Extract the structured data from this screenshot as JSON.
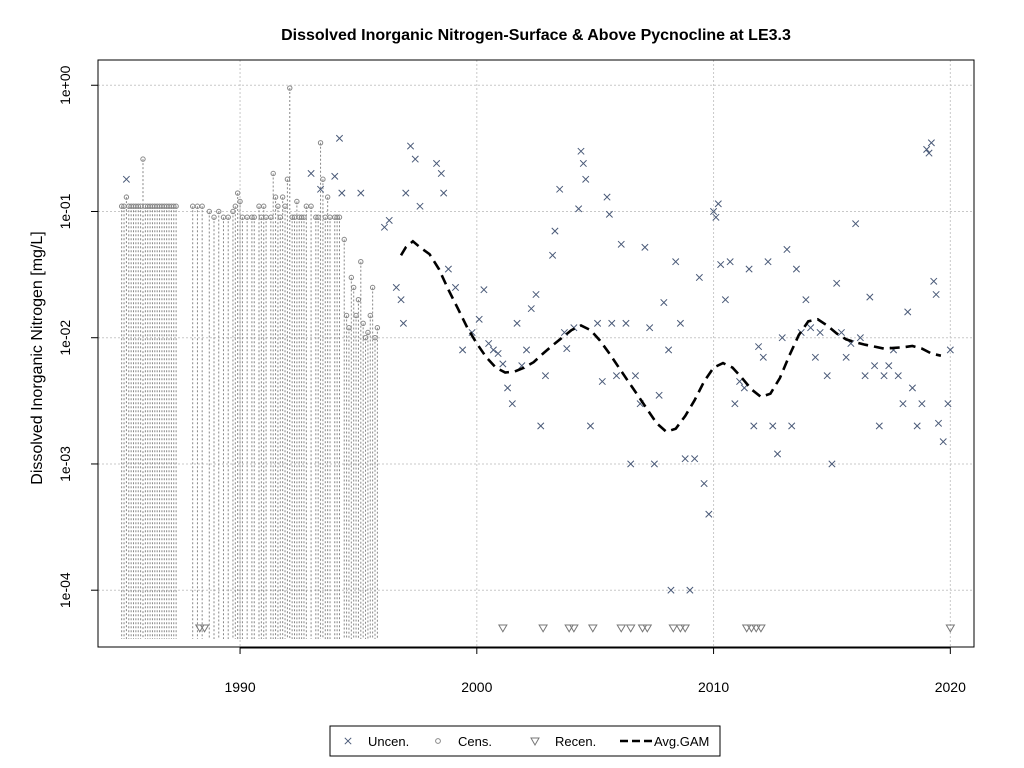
{
  "chart_data": {
    "type": "scatter",
    "title": "Dissolved Inorganic Nitrogen-Surface & Above Pycnocline at LE3.3",
    "xlabel": "",
    "ylabel": "Dissolved Inorganic Nitrogen [mg/L]",
    "xlim": [
      1984.0,
      2021.0
    ],
    "ylim_log10": [
      -4.45,
      0.2
    ],
    "y_scale": "log",
    "grid": true,
    "legend_position": "bottom-center",
    "x_ticks": [
      1990,
      2000,
      2010,
      2020
    ],
    "x_tick_labels": [
      "1990",
      "2000",
      "2010",
      "2020"
    ],
    "y_ticks": [
      0.0001,
      0.001,
      0.01,
      0.1,
      1
    ],
    "y_tick_labels": [
      "1e-04",
      "1e-03",
      "1e-02",
      "1e-01",
      "1e+00"
    ],
    "colors": {
      "uncen": "#4a5a78",
      "cens": "#888888",
      "recen": "#777777",
      "gam": "#000000"
    },
    "series": [
      {
        "name": "Uncen.",
        "marker": "x",
        "points": [
          [
            1985.2,
            0.18
          ],
          [
            1993.0,
            0.2
          ],
          [
            1993.4,
            0.15
          ],
          [
            1994.0,
            0.19
          ],
          [
            1994.2,
            0.38
          ],
          [
            1994.3,
            0.14
          ],
          [
            1995.1,
            0.14
          ],
          [
            1996.1,
            0.075
          ],
          [
            1996.3,
            0.085
          ],
          [
            1996.6,
            0.025
          ],
          [
            1996.8,
            0.02
          ],
          [
            1996.9,
            0.013
          ],
          [
            1997.0,
            0.14
          ],
          [
            1997.2,
            0.33
          ],
          [
            1997.4,
            0.26
          ],
          [
            1997.6,
            0.11
          ],
          [
            1998.3,
            0.24
          ],
          [
            1998.5,
            0.2
          ],
          [
            1998.6,
            0.14
          ],
          [
            1998.8,
            0.035
          ],
          [
            1999.1,
            0.025
          ],
          [
            1999.4,
            0.008
          ],
          [
            1999.8,
            0.011
          ],
          [
            2000.1,
            0.014
          ],
          [
            2000.3,
            0.024
          ],
          [
            2000.5,
            0.009
          ],
          [
            2000.7,
            0.008
          ],
          [
            2000.9,
            0.0075
          ],
          [
            2001.1,
            0.0062
          ],
          [
            2001.3,
            0.004
          ],
          [
            2001.5,
            0.003
          ],
          [
            2001.7,
            0.013
          ],
          [
            2001.9,
            0.006
          ],
          [
            2002.1,
            0.008
          ],
          [
            2002.3,
            0.017
          ],
          [
            2002.5,
            0.022
          ],
          [
            2002.7,
            0.002
          ],
          [
            2002.9,
            0.005
          ],
          [
            2003.2,
            0.045
          ],
          [
            2003.3,
            0.07
          ],
          [
            2003.5,
            0.15
          ],
          [
            2003.7,
            0.011
          ],
          [
            2003.8,
            0.0082
          ],
          [
            2004.1,
            0.012
          ],
          [
            2004.3,
            0.105
          ],
          [
            2004.4,
            0.3
          ],
          [
            2004.5,
            0.24
          ],
          [
            2004.6,
            0.18
          ],
          [
            2004.8,
            0.002
          ],
          [
            2005.1,
            0.013
          ],
          [
            2005.3,
            0.0045
          ],
          [
            2005.5,
            0.13
          ],
          [
            2005.6,
            0.095
          ],
          [
            2005.7,
            0.013
          ],
          [
            2005.9,
            0.005
          ],
          [
            2006.1,
            0.055
          ],
          [
            2006.3,
            0.013
          ],
          [
            2006.5,
            0.001
          ],
          [
            2006.7,
            0.005
          ],
          [
            2006.9,
            0.003
          ],
          [
            2007.1,
            0.052
          ],
          [
            2007.3,
            0.012
          ],
          [
            2007.5,
            0.001
          ],
          [
            2007.7,
            0.0035
          ],
          [
            2007.9,
            0.019
          ],
          [
            2008.1,
            0.008
          ],
          [
            2008.2,
            0.0001
          ],
          [
            2008.4,
            0.04
          ],
          [
            2008.6,
            0.013
          ],
          [
            2008.8,
            0.0011
          ],
          [
            2009.0,
            0.0001
          ],
          [
            2009.2,
            0.0011
          ],
          [
            2009.4,
            0.03
          ],
          [
            2009.6,
            0.0007
          ],
          [
            2009.8,
            0.0004
          ],
          [
            2010.0,
            0.1
          ],
          [
            2010.1,
            0.09
          ],
          [
            2010.2,
            0.115
          ],
          [
            2010.3,
            0.038
          ],
          [
            2010.5,
            0.02
          ],
          [
            2010.7,
            0.04
          ],
          [
            2010.9,
            0.003
          ],
          [
            2011.1,
            0.0045
          ],
          [
            2011.3,
            0.004
          ],
          [
            2011.5,
            0.035
          ],
          [
            2011.7,
            0.002
          ],
          [
            2011.9,
            0.0085
          ],
          [
            2012.1,
            0.007
          ],
          [
            2012.3,
            0.04
          ],
          [
            2012.5,
            0.002
          ],
          [
            2012.7,
            0.0012
          ],
          [
            2012.9,
            0.01
          ],
          [
            2013.1,
            0.05
          ],
          [
            2013.3,
            0.002
          ],
          [
            2013.5,
            0.035
          ],
          [
            2013.7,
            0.011
          ],
          [
            2013.9,
            0.02
          ],
          [
            2014.1,
            0.012
          ],
          [
            2014.3,
            0.007
          ],
          [
            2014.5,
            0.011
          ],
          [
            2014.8,
            0.005
          ],
          [
            2015.0,
            0.001
          ],
          [
            2015.2,
            0.027
          ],
          [
            2015.4,
            0.011
          ],
          [
            2015.6,
            0.007
          ],
          [
            2015.8,
            0.009
          ],
          [
            2016.0,
            0.08
          ],
          [
            2016.2,
            0.01
          ],
          [
            2016.4,
            0.005
          ],
          [
            2016.6,
            0.021
          ],
          [
            2016.8,
            0.006
          ],
          [
            2017.0,
            0.002
          ],
          [
            2017.2,
            0.005
          ],
          [
            2017.4,
            0.006
          ],
          [
            2017.6,
            0.008
          ],
          [
            2017.8,
            0.005
          ],
          [
            2018.0,
            0.003
          ],
          [
            2018.2,
            0.016
          ],
          [
            2018.4,
            0.004
          ],
          [
            2018.6,
            0.002
          ],
          [
            2018.8,
            0.003
          ],
          [
            2019.0,
            0.31
          ],
          [
            2019.1,
            0.29
          ],
          [
            2019.2,
            0.35
          ],
          [
            2019.3,
            0.028
          ],
          [
            2019.4,
            0.022
          ],
          [
            2019.5,
            0.0021
          ],
          [
            2019.7,
            0.0015
          ],
          [
            2019.9,
            0.003
          ],
          [
            2020.0,
            0.008
          ]
        ]
      },
      {
        "name": "Cens.",
        "marker": "circle",
        "points": [
          [
            1985.0,
            0.11
          ],
          [
            1985.1,
            0.11
          ],
          [
            1985.2,
            0.13
          ],
          [
            1985.3,
            0.11
          ],
          [
            1985.4,
            0.11
          ],
          [
            1985.5,
            0.11
          ],
          [
            1985.6,
            0.11
          ],
          [
            1985.7,
            0.11
          ],
          [
            1985.8,
            0.11
          ],
          [
            1985.9,
            0.26
          ],
          [
            1986.0,
            0.11
          ],
          [
            1986.1,
            0.11
          ],
          [
            1986.2,
            0.11
          ],
          [
            1986.3,
            0.11
          ],
          [
            1986.4,
            0.11
          ],
          [
            1986.5,
            0.11
          ],
          [
            1986.6,
            0.11
          ],
          [
            1986.7,
            0.11
          ],
          [
            1986.8,
            0.11
          ],
          [
            1986.9,
            0.11
          ],
          [
            1987.0,
            0.11
          ],
          [
            1987.1,
            0.11
          ],
          [
            1987.2,
            0.11
          ],
          [
            1987.3,
            0.11
          ],
          [
            1988.0,
            0.11
          ],
          [
            1988.2,
            0.11
          ],
          [
            1988.4,
            0.11
          ],
          [
            1988.7,
            0.1
          ],
          [
            1988.9,
            0.09
          ],
          [
            1989.1,
            0.1
          ],
          [
            1989.3,
            0.09
          ],
          [
            1989.5,
            0.09
          ],
          [
            1989.7,
            0.1
          ],
          [
            1989.8,
            0.11
          ],
          [
            1989.9,
            0.14
          ],
          [
            1990.0,
            0.12
          ],
          [
            1990.1,
            0.09
          ],
          [
            1990.3,
            0.09
          ],
          [
            1990.5,
            0.09
          ],
          [
            1990.6,
            0.09
          ],
          [
            1990.8,
            0.11
          ],
          [
            1990.9,
            0.09
          ],
          [
            1991.0,
            0.11
          ],
          [
            1991.1,
            0.09
          ],
          [
            1991.3,
            0.09
          ],
          [
            1991.4,
            0.2
          ],
          [
            1991.5,
            0.13
          ],
          [
            1991.6,
            0.11
          ],
          [
            1991.7,
            0.09
          ],
          [
            1991.8,
            0.13
          ],
          [
            1991.9,
            0.11
          ],
          [
            1992.0,
            0.18
          ],
          [
            1992.1,
            0.95
          ],
          [
            1992.2,
            0.09
          ],
          [
            1992.3,
            0.09
          ],
          [
            1992.4,
            0.12
          ],
          [
            1992.5,
            0.09
          ],
          [
            1992.6,
            0.09
          ],
          [
            1992.7,
            0.09
          ],
          [
            1992.8,
            0.11
          ],
          [
            1993.0,
            0.11
          ],
          [
            1993.2,
            0.09
          ],
          [
            1993.3,
            0.09
          ],
          [
            1993.4,
            0.35
          ],
          [
            1993.5,
            0.18
          ],
          [
            1993.6,
            0.09
          ],
          [
            1993.7,
            0.13
          ],
          [
            1993.8,
            0.09
          ],
          [
            1994.0,
            0.09
          ],
          [
            1994.1,
            0.09
          ],
          [
            1994.2,
            0.09
          ],
          [
            1994.4,
            0.06
          ],
          [
            1994.5,
            0.015
          ],
          [
            1994.6,
            0.012
          ],
          [
            1994.7,
            0.03
          ],
          [
            1994.8,
            0.025
          ],
          [
            1994.9,
            0.015
          ],
          [
            1995.0,
            0.02
          ],
          [
            1995.1,
            0.04
          ],
          [
            1995.2,
            0.013
          ],
          [
            1995.3,
            0.01
          ],
          [
            1995.4,
            0.011
          ],
          [
            1995.5,
            0.015
          ],
          [
            1995.6,
            0.025
          ],
          [
            1995.7,
            0.01
          ],
          [
            1995.8,
            0.012
          ]
        ]
      },
      {
        "name": "Recen.",
        "marker": "triangle-down",
        "y_value": 5e-05,
        "x": [
          1988.3,
          1988.5,
          2001.1,
          2002.8,
          2003.9,
          2004.1,
          2004.9,
          2006.1,
          2006.5,
          2007.0,
          2007.2,
          2008.3,
          2008.6,
          2008.8,
          2011.4,
          2011.6,
          2011.8,
          2012.0,
          2020.0
        ]
      },
      {
        "name": "Avg.GAM",
        "marker": "dashed-line",
        "points": [
          [
            1996.8,
            0.045
          ],
          [
            1997.0,
            0.052
          ],
          [
            1997.3,
            0.058
          ],
          [
            1997.6,
            0.052
          ],
          [
            1998.0,
            0.046
          ],
          [
            1998.4,
            0.035
          ],
          [
            1998.8,
            0.024
          ],
          [
            1999.2,
            0.017
          ],
          [
            1999.6,
            0.012
          ],
          [
            2000.0,
            0.009
          ],
          [
            2000.4,
            0.007
          ],
          [
            2000.8,
            0.0058
          ],
          [
            2001.2,
            0.0053
          ],
          [
            2001.6,
            0.0054
          ],
          [
            2002.0,
            0.0058
          ],
          [
            2002.4,
            0.0064
          ],
          [
            2002.8,
            0.0075
          ],
          [
            2003.2,
            0.0087
          ],
          [
            2003.6,
            0.01
          ],
          [
            2004.0,
            0.0115
          ],
          [
            2004.4,
            0.0125
          ],
          [
            2004.8,
            0.0115
          ],
          [
            2005.2,
            0.0095
          ],
          [
            2005.6,
            0.0075
          ],
          [
            2006.0,
            0.0058
          ],
          [
            2006.4,
            0.0045
          ],
          [
            2006.8,
            0.0035
          ],
          [
            2007.2,
            0.0027
          ],
          [
            2007.6,
            0.0021
          ],
          [
            2008.0,
            0.0018
          ],
          [
            2008.4,
            0.0019
          ],
          [
            2008.8,
            0.0024
          ],
          [
            2009.2,
            0.0032
          ],
          [
            2009.6,
            0.0045
          ],
          [
            2010.0,
            0.0058
          ],
          [
            2010.4,
            0.0063
          ],
          [
            2010.8,
            0.0058
          ],
          [
            2011.2,
            0.0048
          ],
          [
            2011.6,
            0.0039
          ],
          [
            2012.0,
            0.0034
          ],
          [
            2012.4,
            0.0036
          ],
          [
            2012.8,
            0.0048
          ],
          [
            2013.2,
            0.0072
          ],
          [
            2013.6,
            0.0105
          ],
          [
            2014.0,
            0.0135
          ],
          [
            2014.4,
            0.014
          ],
          [
            2014.8,
            0.0125
          ],
          [
            2015.2,
            0.0108
          ],
          [
            2015.6,
            0.0097
          ],
          [
            2016.0,
            0.0092
          ],
          [
            2016.4,
            0.0088
          ],
          [
            2016.8,
            0.0085
          ],
          [
            2017.2,
            0.0082
          ],
          [
            2017.6,
            0.0083
          ],
          [
            2018.0,
            0.0084
          ],
          [
            2018.4,
            0.0086
          ],
          [
            2018.8,
            0.0082
          ],
          [
            2019.2,
            0.0075
          ],
          [
            2019.6,
            0.0072
          ]
        ]
      }
    ],
    "legend": [
      "Uncen.",
      "Cens.",
      "Recen.",
      "Avg.GAM"
    ]
  }
}
